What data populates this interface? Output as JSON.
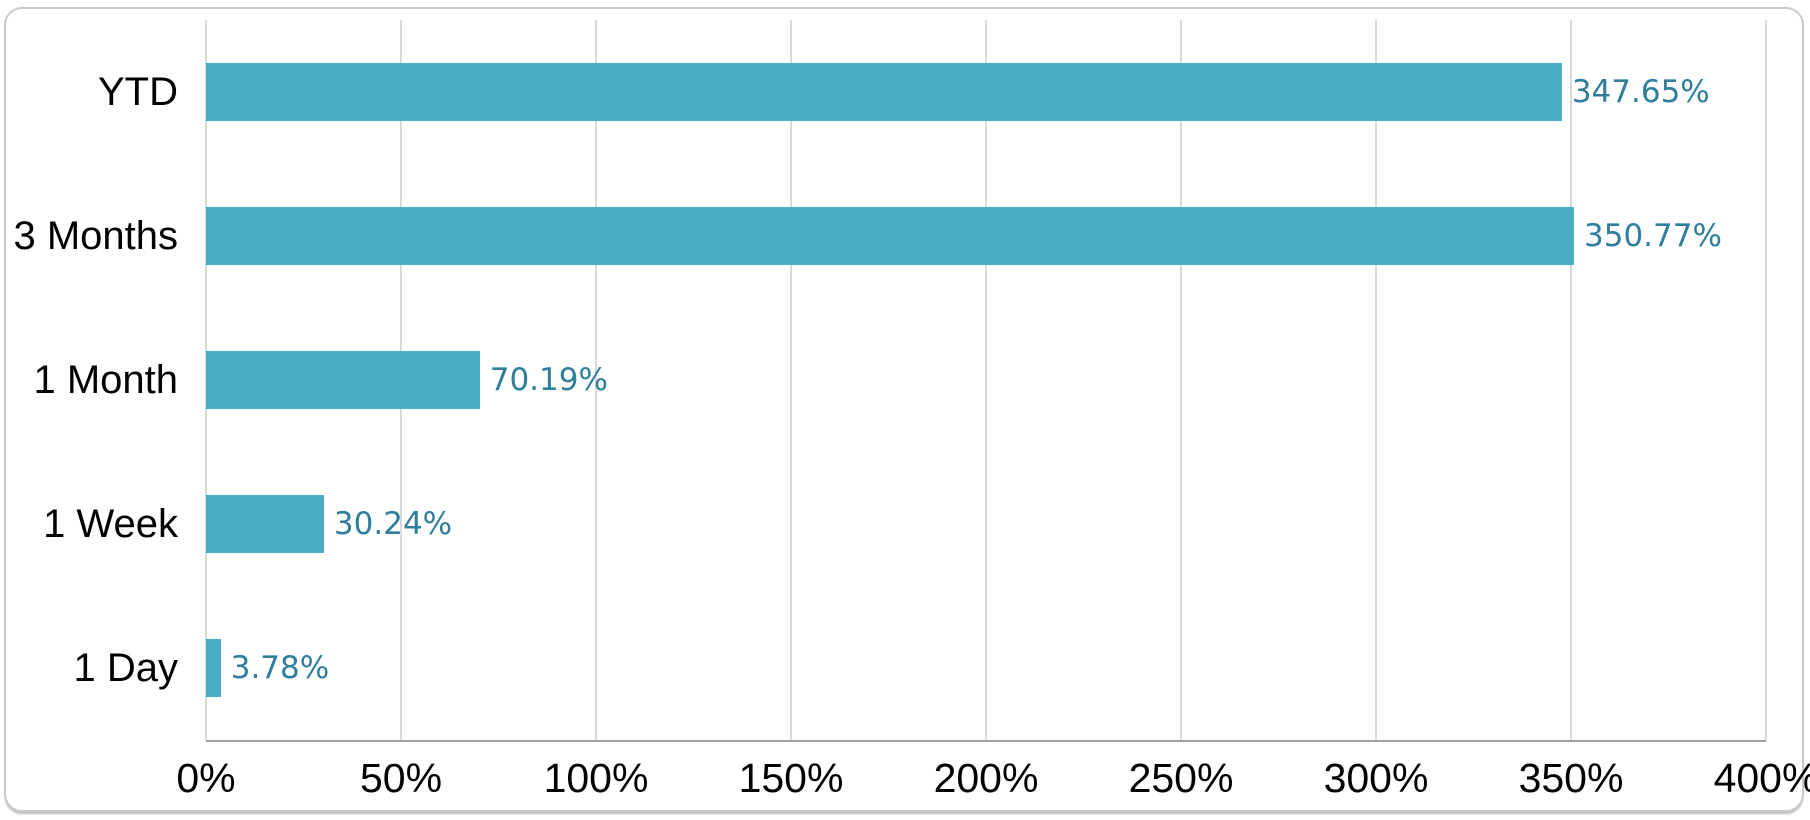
{
  "chart_data": {
    "type": "bar",
    "orientation": "horizontal",
    "title": "",
    "categories": [
      "YTD",
      "3 Months",
      "1 Month",
      "1 Week",
      "1 Day"
    ],
    "values": [
      347.65,
      350.77,
      70.19,
      30.24,
      3.78
    ],
    "data_labels": [
      "347.65%",
      "350.77%",
      "70.19%",
      "30.24%",
      "3.78%"
    ],
    "xlabel": "",
    "ylabel": "",
    "x_axis": {
      "min": 0,
      "max": 400,
      "tick_values": [
        0,
        50,
        100,
        150,
        200,
        250,
        300,
        350,
        400
      ],
      "tick_labels": [
        "0%",
        "50%",
        "100%",
        "150%",
        "200%",
        "250%",
        "300%",
        "350%",
        "400%"
      ]
    },
    "grid": "vertical-only",
    "legend": "none",
    "colors": {
      "bar_fill": "#4BACC6",
      "data_label_text": "#2E7E9C",
      "gridline": "#D9D9D9",
      "axis_line": "#9E9E9E",
      "category_label_text": "#000000",
      "tick_label_text": "#000000",
      "card_background": "#FFFFFF",
      "card_border": "#C9C9C9"
    }
  }
}
